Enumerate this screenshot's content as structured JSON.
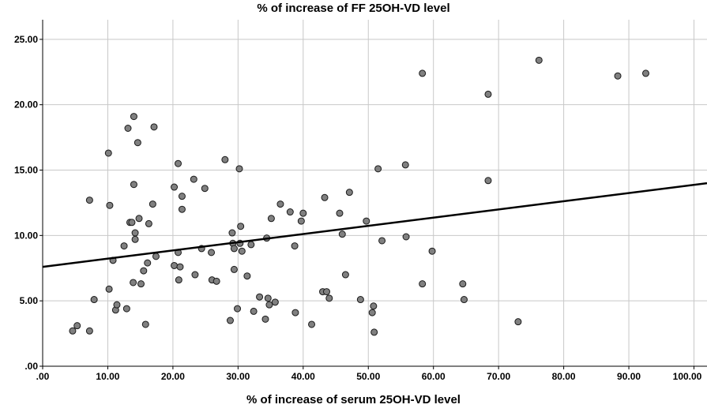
{
  "chart_data": {
    "type": "scatter",
    "title": "% of increase of FF 25OH-VD level",
    "xlabel": "% of increase of serum 25OH-VD level",
    "ylabel": "",
    "xlim": [
      0,
      102
    ],
    "ylim": [
      0,
      26.5
    ],
    "x_ticks": [
      0,
      10,
      20,
      30,
      40,
      50,
      60,
      70,
      80,
      90,
      100
    ],
    "x_tick_labels": [
      ".00",
      "10.00",
      "20.00",
      "30.00",
      "40.00",
      "50.00",
      "60.00",
      "70.00",
      "80.00",
      "90.00",
      "100.00"
    ],
    "y_ticks": [
      0,
      5,
      10,
      15,
      20,
      25
    ],
    "y_tick_labels": [
      ".00",
      "5.00",
      "10.00",
      "15.00",
      "20.00",
      "25.00"
    ],
    "grid": true,
    "fit_line": {
      "x": [
        0,
        102
      ],
      "y": [
        7.6,
        14.0
      ]
    },
    "points": [
      [
        4.6,
        2.7
      ],
      [
        5.3,
        3.1
      ],
      [
        7.2,
        2.7
      ],
      [
        7.2,
        12.7
      ],
      [
        7.9,
        5.1
      ],
      [
        10.1,
        16.3
      ],
      [
        10.2,
        5.9
      ],
      [
        10.3,
        12.3
      ],
      [
        10.8,
        8.1
      ],
      [
        11.2,
        4.3
      ],
      [
        11.4,
        4.7
      ],
      [
        12.5,
        9.2
      ],
      [
        12.9,
        4.4
      ],
      [
        13.1,
        18.2
      ],
      [
        13.4,
        11.0
      ],
      [
        13.7,
        11.0
      ],
      [
        13.9,
        6.4
      ],
      [
        14.0,
        13.9
      ],
      [
        14.0,
        19.1
      ],
      [
        14.2,
        10.2
      ],
      [
        14.2,
        9.7
      ],
      [
        14.6,
        17.1
      ],
      [
        14.8,
        11.3
      ],
      [
        15.1,
        6.3
      ],
      [
        15.5,
        7.3
      ],
      [
        15.8,
        3.2
      ],
      [
        16.1,
        7.9
      ],
      [
        16.3,
        10.9
      ],
      [
        16.9,
        12.4
      ],
      [
        17.1,
        18.3
      ],
      [
        17.4,
        8.4
      ],
      [
        20.2,
        13.7
      ],
      [
        20.2,
        7.7
      ],
      [
        20.8,
        8.7
      ],
      [
        20.8,
        15.5
      ],
      [
        21.1,
        7.6
      ],
      [
        21.4,
        13.0
      ],
      [
        21.4,
        12.0
      ],
      [
        20.9,
        6.6
      ],
      [
        23.2,
        14.3
      ],
      [
        23.4,
        7.0
      ],
      [
        24.4,
        9.0
      ],
      [
        24.9,
        13.6
      ],
      [
        25.9,
        8.7
      ],
      [
        26.0,
        6.6
      ],
      [
        26.7,
        6.5
      ],
      [
        28.0,
        15.8
      ],
      [
        28.8,
        3.5
      ],
      [
        29.2,
        9.4
      ],
      [
        29.1,
        10.2
      ],
      [
        29.4,
        7.4
      ],
      [
        29.4,
        9.0
      ],
      [
        29.9,
        4.4
      ],
      [
        30.2,
        15.1
      ],
      [
        30.3,
        9.4
      ],
      [
        30.4,
        10.7
      ],
      [
        30.6,
        8.8
      ],
      [
        31.4,
        6.9
      ],
      [
        32.0,
        9.3
      ],
      [
        32.4,
        4.2
      ],
      [
        33.3,
        5.3
      ],
      [
        34.2,
        3.6
      ],
      [
        34.4,
        9.8
      ],
      [
        34.6,
        5.2
      ],
      [
        34.8,
        4.7
      ],
      [
        35.1,
        11.3
      ],
      [
        35.7,
        4.9
      ],
      [
        36.5,
        12.4
      ],
      [
        38.0,
        11.8
      ],
      [
        38.7,
        9.2
      ],
      [
        38.8,
        4.1
      ],
      [
        39.7,
        11.1
      ],
      [
        40.0,
        11.7
      ],
      [
        41.3,
        3.2
      ],
      [
        43.0,
        5.7
      ],
      [
        43.3,
        12.9
      ],
      [
        43.6,
        5.7
      ],
      [
        44.0,
        5.2
      ],
      [
        45.6,
        11.7
      ],
      [
        46.0,
        10.1
      ],
      [
        46.5,
        7.0
      ],
      [
        47.1,
        13.3
      ],
      [
        48.8,
        5.1
      ],
      [
        49.7,
        11.1
      ],
      [
        50.6,
        4.1
      ],
      [
        50.8,
        4.6
      ],
      [
        50.9,
        2.6
      ],
      [
        51.5,
        15.1
      ],
      [
        52.1,
        9.6
      ],
      [
        55.7,
        15.4
      ],
      [
        55.8,
        9.9
      ],
      [
        58.3,
        22.4
      ],
      [
        58.3,
        6.3
      ],
      [
        59.8,
        8.8
      ],
      [
        64.5,
        6.3
      ],
      [
        64.7,
        5.1
      ],
      [
        68.4,
        20.8
      ],
      [
        68.4,
        14.2
      ],
      [
        73.0,
        3.4
      ],
      [
        76.2,
        23.4
      ],
      [
        88.3,
        22.2
      ],
      [
        92.6,
        22.4
      ]
    ]
  }
}
